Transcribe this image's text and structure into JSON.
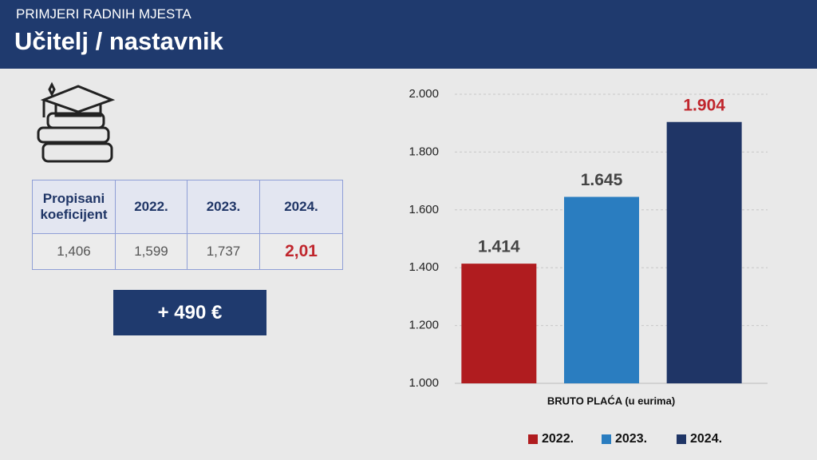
{
  "header": {
    "subtitle": "PRIMJERI RADNIH MJESTA",
    "title": "Učitelj / nastavnik"
  },
  "table": {
    "header": [
      "Propisani koeficijent",
      "2022.",
      "2023.",
      "2024."
    ],
    "rows": [
      [
        "1,406",
        "1,599",
        "1,737",
        "2,01"
      ]
    ]
  },
  "increase": "+ 490 €",
  "chart_data": {
    "type": "bar",
    "x_label": "BRUTO PLAĆA (u eurima)",
    "categories": [
      "2022.",
      "2023.",
      "2024."
    ],
    "values": [
      1414,
      1645,
      1904
    ],
    "value_labels": [
      "1.414",
      "1.645",
      "1.904"
    ],
    "colors": [
      "#b01c1f",
      "#2a7dc0",
      "#1f3566"
    ],
    "ylim": [
      1000,
      2000
    ],
    "yticks": [
      {
        "value": 1000,
        "label": "1.000"
      },
      {
        "value": 1200,
        "label": "1.200"
      },
      {
        "value": 1400,
        "label": "1.400"
      },
      {
        "value": 1600,
        "label": "1.600"
      },
      {
        "value": 1800,
        "label": "1.800"
      },
      {
        "value": 2000,
        "label": "2.000"
      }
    ],
    "grid": true,
    "legend": "bottom"
  }
}
